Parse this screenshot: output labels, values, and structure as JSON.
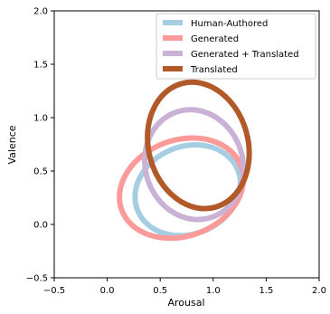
{
  "chart_data": {
    "type": "scatter",
    "xlabel": "Arousal",
    "ylabel": "Valence",
    "xlim": [
      -0.5,
      2.0
    ],
    "ylim": [
      -0.5,
      2.0
    ],
    "xticks": [
      "−0.5",
      "0.0",
      "0.5",
      "1.0",
      "1.5",
      "2.0"
    ],
    "yticks": [
      "−0.5",
      "0.0",
      "0.5",
      "1.0",
      "1.5",
      "2.0"
    ],
    "xtick_values": [
      -0.5,
      0.0,
      0.5,
      1.0,
      1.5,
      2.0
    ],
    "ytick_values": [
      -0.5,
      0.0,
      0.5,
      1.0,
      1.5,
      2.0
    ],
    "grid": false,
    "legend_position": "top-right",
    "series": [
      {
        "name": "Human-Authored",
        "color": "#a6cee3",
        "shape": "ellipse",
        "center": [
          0.76,
          0.32
        ],
        "rx": 0.51,
        "ry": 0.41,
        "angle_deg": 22
      },
      {
        "name": "Generated",
        "color": "#fb9a99",
        "shape": "ellipse",
        "center": [
          0.7,
          0.34
        ],
        "rx": 0.6,
        "ry": 0.45,
        "angle_deg": 20
      },
      {
        "name": "Generated + Translated",
        "color": "#cab2d6",
        "shape": "ellipse",
        "center": [
          0.82,
          0.56
        ],
        "rx": 0.46,
        "ry": 0.52,
        "angle_deg": 18
      },
      {
        "name": "Translated",
        "color": "#b15928",
        "shape": "ellipse",
        "center": [
          0.86,
          0.74
        ],
        "rx": 0.47,
        "ry": 0.6,
        "angle_deg": 15
      }
    ]
  }
}
